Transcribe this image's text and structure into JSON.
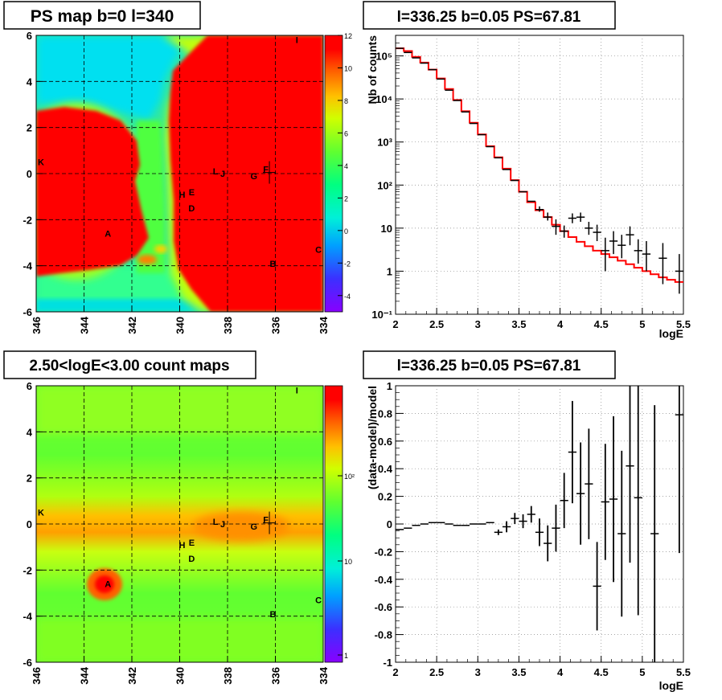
{
  "colors": {
    "map_red": "#ff0000",
    "model_line": "#ff0000",
    "data_points": "#000000",
    "grid": "#808080",
    "frame": "#000000"
  },
  "panels": {
    "top_left": {
      "title": "PS map b=0 l=340",
      "colorbar_ticks": [
        "12",
        "10",
        "8",
        "6",
        "4",
        "2",
        "0",
        "-2",
        "-4"
      ]
    },
    "top_right": {
      "title": "l=336.25 b=0.05 PS=67.81"
    },
    "bottom_left": {
      "title": "2.50<logE<3.00 count maps",
      "colorbar_ticks": [
        "10²",
        "10",
        "1"
      ]
    },
    "bottom_right": {
      "title": "l=336.25 b=0.05 PS=67.81"
    }
  },
  "chart_data": [
    {
      "id": "ps_map",
      "type": "heatmap",
      "title": "PS map b=0 l=340",
      "xlabel": "",
      "ylabel": "",
      "x_ticks": [
        "346",
        "344",
        "342",
        "340",
        "338",
        "336",
        "334"
      ],
      "y_ticks": [
        "6",
        "4",
        "2",
        "0",
        "-2",
        "-4",
        "-6"
      ],
      "xlim": [
        346,
        334
      ],
      "ylim": [
        -6,
        6
      ],
      "zlim": [
        -5,
        12
      ],
      "grid": true,
      "sources": [
        {
          "label": "I",
          "l": 335.1,
          "b": 5.8
        },
        {
          "label": "K",
          "l": 345.8,
          "b": 0.5
        },
        {
          "label": "L",
          "l": 338.5,
          "b": 0.1
        },
        {
          "label": "J",
          "l": 338.2,
          "b": 0.0
        },
        {
          "label": "G",
          "l": 336.9,
          "b": -0.1
        },
        {
          "label": "F",
          "l": 336.4,
          "b": 0.2
        },
        {
          "label": "H",
          "l": 339.9,
          "b": -0.9
        },
        {
          "label": "E",
          "l": 339.5,
          "b": -0.8
        },
        {
          "label": "D",
          "l": 339.5,
          "b": -1.5
        },
        {
          "label": "A",
          "l": 343.0,
          "b": -2.6
        },
        {
          "label": "C",
          "l": 334.2,
          "b": -3.3
        },
        {
          "label": "B",
          "l": 336.1,
          "b": -3.9
        }
      ],
      "marker": {
        "l": 336.25,
        "b": 0.05
      }
    },
    {
      "id": "spectrum",
      "type": "line",
      "title": "l=336.25 b=0.05 PS=67.81",
      "xlabel": "logE",
      "ylabel": "Nb of counts",
      "log_y": true,
      "xlim": [
        2,
        5.5
      ],
      "ylim": [
        0.1,
        300000
      ],
      "x_ticks": [
        "2",
        "2.5",
        "3",
        "3.5",
        "4",
        "4.5",
        "5",
        "5.5"
      ],
      "y_ticks": [
        "10⁻¹",
        "1",
        "10",
        "10²",
        "10³",
        "10⁴",
        "10⁵"
      ],
      "grid": true,
      "series": [
        {
          "kind": "model_step",
          "x": [
            2.0,
            2.1,
            2.2,
            2.3,
            2.4,
            2.5,
            2.6,
            2.7,
            2.8,
            2.9,
            3.0,
            3.1,
            3.2,
            3.3,
            3.4,
            3.5,
            3.6,
            3.7,
            3.8,
            3.9,
            4.0,
            4.1,
            4.2,
            4.3,
            4.4,
            4.5,
            4.6,
            4.7,
            4.8,
            4.9,
            5.0,
            5.1,
            5.2,
            5.3,
            5.4
          ],
          "values": [
            150000,
            130000,
            95000,
            70000,
            48000,
            30000,
            17000,
            9500,
            5200,
            2800,
            1500,
            800,
            440,
            240,
            130,
            70,
            40,
            26,
            18,
            12,
            8.5,
            6.2,
            4.8,
            3.8,
            3.0,
            2.5,
            2.1,
            1.75,
            1.45,
            1.2,
            1.0,
            0.85,
            0.72,
            0.63,
            0.56
          ]
        },
        {
          "kind": "data_points",
          "x": [
            2.05,
            2.15,
            2.25,
            2.35,
            2.45,
            2.55,
            2.65,
            2.75,
            2.85,
            2.95,
            3.05,
            3.15,
            3.25,
            3.35,
            3.45,
            3.55,
            3.65,
            3.75,
            3.85,
            3.95,
            4.05,
            4.15,
            4.25,
            4.35,
            4.45,
            4.55,
            4.65,
            4.75,
            4.85,
            4.95,
            5.05,
            5.15,
            5.25,
            5.35,
            5.45
          ],
          "values": [
            150000,
            120000,
            90000,
            68000,
            48000,
            29000,
            16000,
            9200,
            5000,
            2700,
            1480,
            780,
            430,
            230,
            128,
            70,
            42,
            27,
            18,
            11,
            8.5,
            17,
            18,
            10,
            8,
            3,
            5,
            4,
            7,
            3,
            2.5,
            null,
            2,
            null,
            1
          ],
          "errors_low": [
            0,
            0,
            0,
            0,
            0,
            0,
            0,
            0,
            0,
            0,
            0,
            0,
            0,
            0,
            0,
            0,
            0,
            3,
            3,
            4,
            2.5,
            4,
            4,
            3,
            3,
            2,
            2.5,
            2,
            3,
            1.5,
            1.5,
            null,
            1.5,
            null,
            0.7
          ],
          "errors_high": [
            0,
            0,
            0,
            0,
            0,
            0,
            0,
            0,
            0,
            0,
            0,
            0,
            0,
            0,
            0,
            0,
            0,
            5,
            5,
            5,
            3,
            5,
            5,
            4,
            4,
            3,
            3.5,
            3,
            4,
            2.5,
            2.5,
            null,
            2.5,
            null,
            1.5
          ]
        }
      ]
    },
    {
      "id": "count_map",
      "type": "heatmap",
      "title": "2.50<logE<3.00 count maps",
      "xlabel": "",
      "ylabel": "",
      "x_ticks": [
        "346",
        "344",
        "342",
        "340",
        "338",
        "336",
        "334"
      ],
      "y_ticks": [
        "6",
        "4",
        "2",
        "0",
        "-2",
        "-4",
        "-6"
      ],
      "xlim": [
        346,
        334
      ],
      "ylim": [
        -6,
        6
      ],
      "log_z": true,
      "grid": true,
      "sources": [
        {
          "label": "I",
          "l": 335.1,
          "b": 5.8
        },
        {
          "label": "K",
          "l": 345.8,
          "b": 0.5
        },
        {
          "label": "L",
          "l": 338.5,
          "b": 0.1
        },
        {
          "label": "J",
          "l": 338.2,
          "b": 0.0
        },
        {
          "label": "G",
          "l": 336.9,
          "b": -0.1
        },
        {
          "label": "F",
          "l": 336.4,
          "b": 0.2
        },
        {
          "label": "H",
          "l": 339.9,
          "b": -0.9
        },
        {
          "label": "E",
          "l": 339.5,
          "b": -0.8
        },
        {
          "label": "D",
          "l": 339.5,
          "b": -1.5
        },
        {
          "label": "A",
          "l": 343.0,
          "b": -2.6
        },
        {
          "label": "C",
          "l": 334.2,
          "b": -3.3
        },
        {
          "label": "B",
          "l": 336.1,
          "b": -3.9
        }
      ],
      "marker": {
        "l": 336.25,
        "b": 0.05
      }
    },
    {
      "id": "residuals",
      "type": "scatter",
      "title": "l=336.25 b=0.05 PS=67.81",
      "xlabel": "logE",
      "ylabel": "(data-model)/model",
      "xlim": [
        2,
        5.5
      ],
      "ylim": [
        -1,
        1
      ],
      "x_ticks": [
        "2",
        "2.5",
        "3",
        "3.5",
        "4",
        "4.5",
        "5",
        "5.5"
      ],
      "y_ticks": [
        "1",
        "0.8",
        "0.6",
        "0.4",
        "0.2",
        "0",
        "-0.2",
        "-0.4",
        "-0.6",
        "-0.8",
        "-1"
      ],
      "grid": true,
      "series": [
        {
          "kind": "residual_points",
          "x": [
            2.05,
            2.15,
            2.25,
            2.35,
            2.45,
            2.55,
            2.65,
            2.75,
            2.85,
            2.95,
            3.05,
            3.15,
            3.25,
            3.35,
            3.45,
            3.55,
            3.65,
            3.75,
            3.85,
            3.95,
            4.05,
            4.15,
            4.25,
            4.35,
            4.45,
            4.55,
            4.65,
            4.75,
            4.85,
            4.95,
            5.15,
            5.45
          ],
          "values": [
            -0.04,
            -0.03,
            -0.01,
            0.0,
            0.01,
            0.01,
            0.0,
            -0.01,
            -0.01,
            0.0,
            0.0,
            0.01,
            -0.06,
            -0.02,
            0.04,
            0.02,
            0.07,
            -0.06,
            -0.14,
            -0.03,
            0.17,
            0.52,
            0.22,
            0.29,
            -0.45,
            0.16,
            0.18,
            -0.07,
            0.42,
            0.19,
            -0.07,
            0.79
          ],
          "errors": [
            0,
            0,
            0,
            0,
            0,
            0,
            0,
            0,
            0,
            0,
            0,
            0,
            0.02,
            0.04,
            0.04,
            0.05,
            0.06,
            0.1,
            0.13,
            0.17,
            0.2,
            0.37,
            0.37,
            0.4,
            0.32,
            0.42,
            0.6,
            0.6,
            0.7,
            0.85,
            0.93,
            1.0
          ]
        }
      ]
    }
  ]
}
